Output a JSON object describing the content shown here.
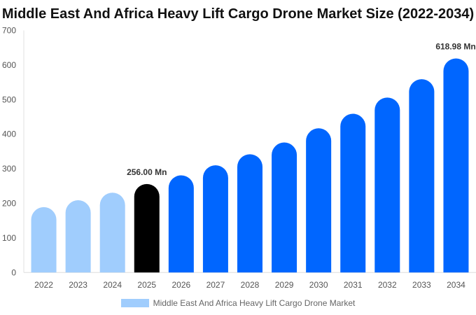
{
  "chart_data": {
    "type": "bar",
    "title": "Middle East And Africa Heavy Lift Cargo Drone Market Size (2022-2034)",
    "categories": [
      "2022",
      "2023",
      "2024",
      "2025",
      "2026",
      "2027",
      "2028",
      "2029",
      "2030",
      "2031",
      "2032",
      "2033",
      "2034"
    ],
    "series": [
      {
        "name": "Middle East And Africa Heavy Lift Cargo Drone Market",
        "values": [
          189,
          209,
          231,
          256,
          281,
          310,
          342,
          376,
          417,
          459,
          506,
          559,
          618.98
        ]
      }
    ],
    "data_labels": [
      {
        "category": "2025",
        "text": "256.00 Mn"
      },
      {
        "category": "2034",
        "text": "618.98 Mn"
      }
    ],
    "ylim": [
      0,
      700
    ],
    "yticks": [
      0,
      100,
      200,
      300,
      400,
      500,
      600,
      700
    ],
    "grid": false,
    "legend": "bottom",
    "colors": {
      "historic": "#a0cdfd",
      "current": "#000000",
      "forecast": "#0066ff"
    }
  }
}
